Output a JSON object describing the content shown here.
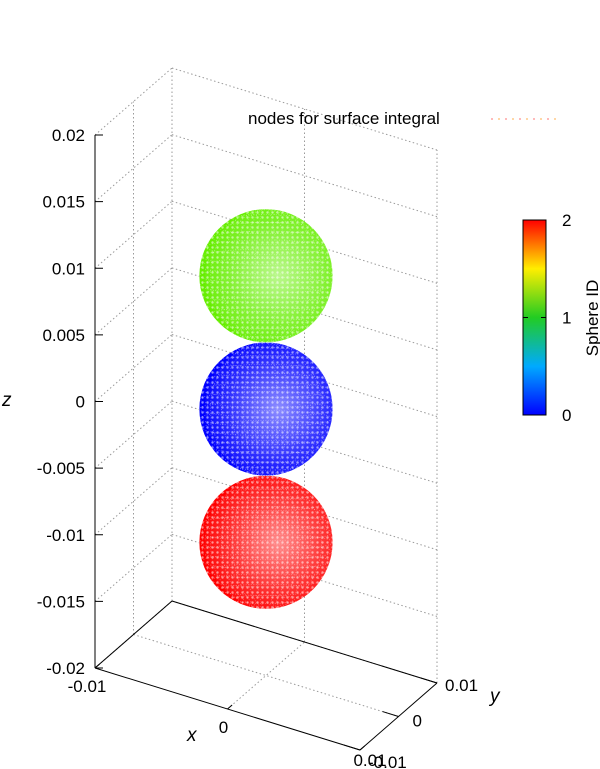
{
  "chart_data": {
    "type": "scatter",
    "subtype": "3d-surface-nodes",
    "xlabel": "x",
    "ylabel": "y",
    "zlabel": "z",
    "xlim": [
      -0.01,
      0.01
    ],
    "ylim": [
      -0.01,
      0.01
    ],
    "zlim": [
      -0.02,
      0.02
    ],
    "z_ticks": [
      "0.02",
      "0.015",
      "0.01",
      "0.005",
      "0",
      "-0.005",
      "-0.01",
      "-0.015",
      "-0.02"
    ],
    "x_ticks": [
      "-0.01",
      "0",
      "0.01"
    ],
    "y_ticks": [
      "-0.01",
      "0",
      "0.01"
    ],
    "legend": {
      "label": "nodes for surface integral",
      "position": "top-right"
    },
    "colorbar": {
      "title": "Sphere ID",
      "ticks": [
        "2",
        "1",
        "0"
      ],
      "range": [
        0,
        2
      ]
    },
    "grid": true,
    "spheres": [
      {
        "id": 0,
        "center": [
          0,
          0,
          -0.01
        ],
        "radius": 0.005,
        "color": "#ff0000"
      },
      {
        "id": 1,
        "center": [
          0,
          0,
          0
        ],
        "radius": 0.005,
        "color": "#0000ff"
      },
      {
        "id": 2,
        "center": [
          0,
          0,
          0.01
        ],
        "radius": 0.005,
        "color": "#66ee00"
      }
    ]
  },
  "colors": {
    "sphere_id_0": "#ff0000",
    "sphere_id_1": "#0000ff",
    "sphere_id_2": "#66ee00",
    "grid": "#9a9a9a"
  }
}
